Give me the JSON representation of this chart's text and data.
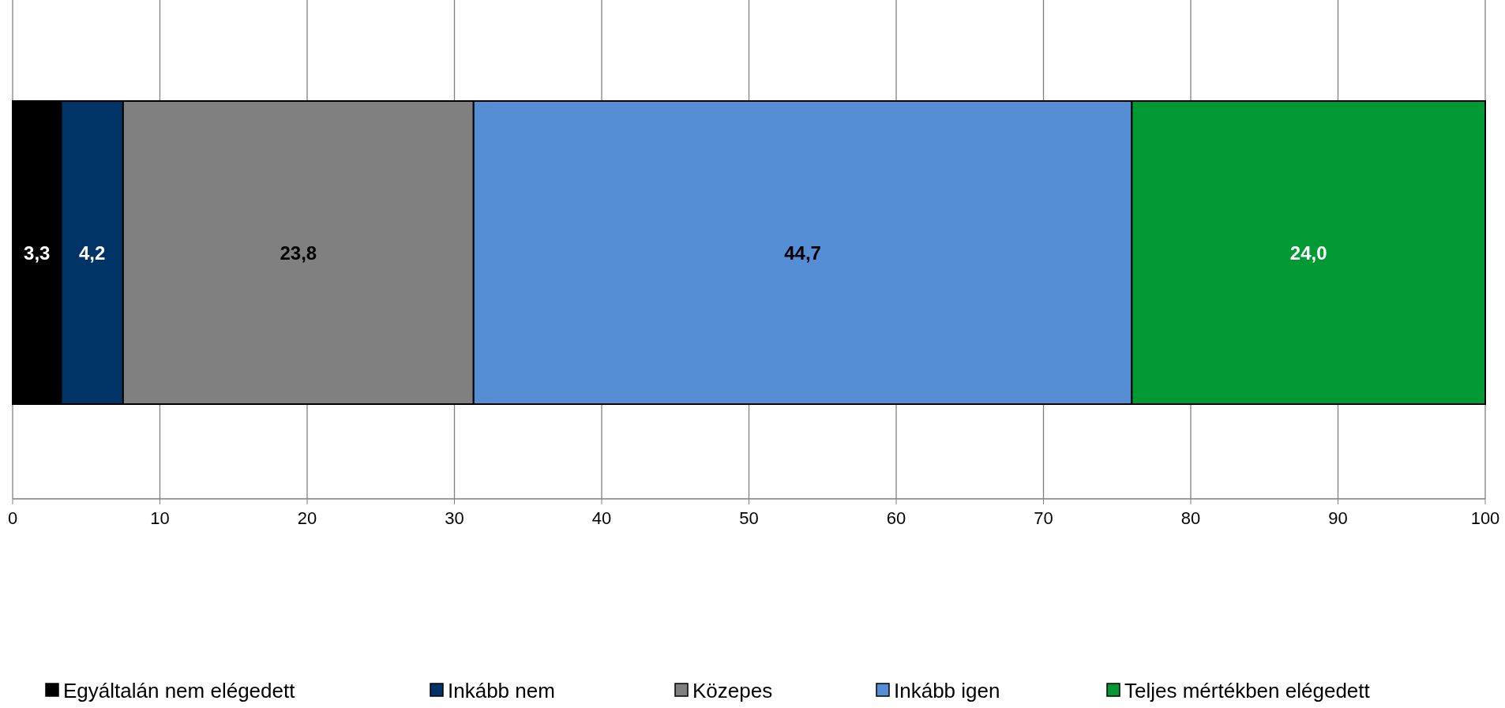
{
  "chart_data": {
    "type": "bar",
    "orientation": "horizontal",
    "stacked": true,
    "categories": [
      null
    ],
    "series": [
      {
        "name": "Egyáltalán nem elégedett",
        "color": "#000000",
        "values": [
          3.3
        ],
        "value_labels": [
          "3,3"
        ]
      },
      {
        "name": "Inkább nem",
        "color": "#003366",
        "values": [
          4.2
        ],
        "value_labels": [
          "4,2"
        ]
      },
      {
        "name": "Közepes",
        "color": "#808080",
        "values": [
          23.8
        ],
        "value_labels": [
          "23,8"
        ]
      },
      {
        "name": "Inkább igen",
        "color": "#558ed5",
        "values": [
          44.7
        ],
        "value_labels": [
          "44,7"
        ]
      },
      {
        "name": "Teljes mértékben elégedett",
        "color": "#009933",
        "values": [
          24.0
        ],
        "value_labels": [
          "24,0"
        ]
      }
    ],
    "xlim": [
      0,
      100
    ],
    "xticks": [
      0,
      10,
      20,
      30,
      40,
      50,
      60,
      70,
      80,
      90,
      100
    ],
    "grid": "x",
    "legend": "bottom"
  }
}
